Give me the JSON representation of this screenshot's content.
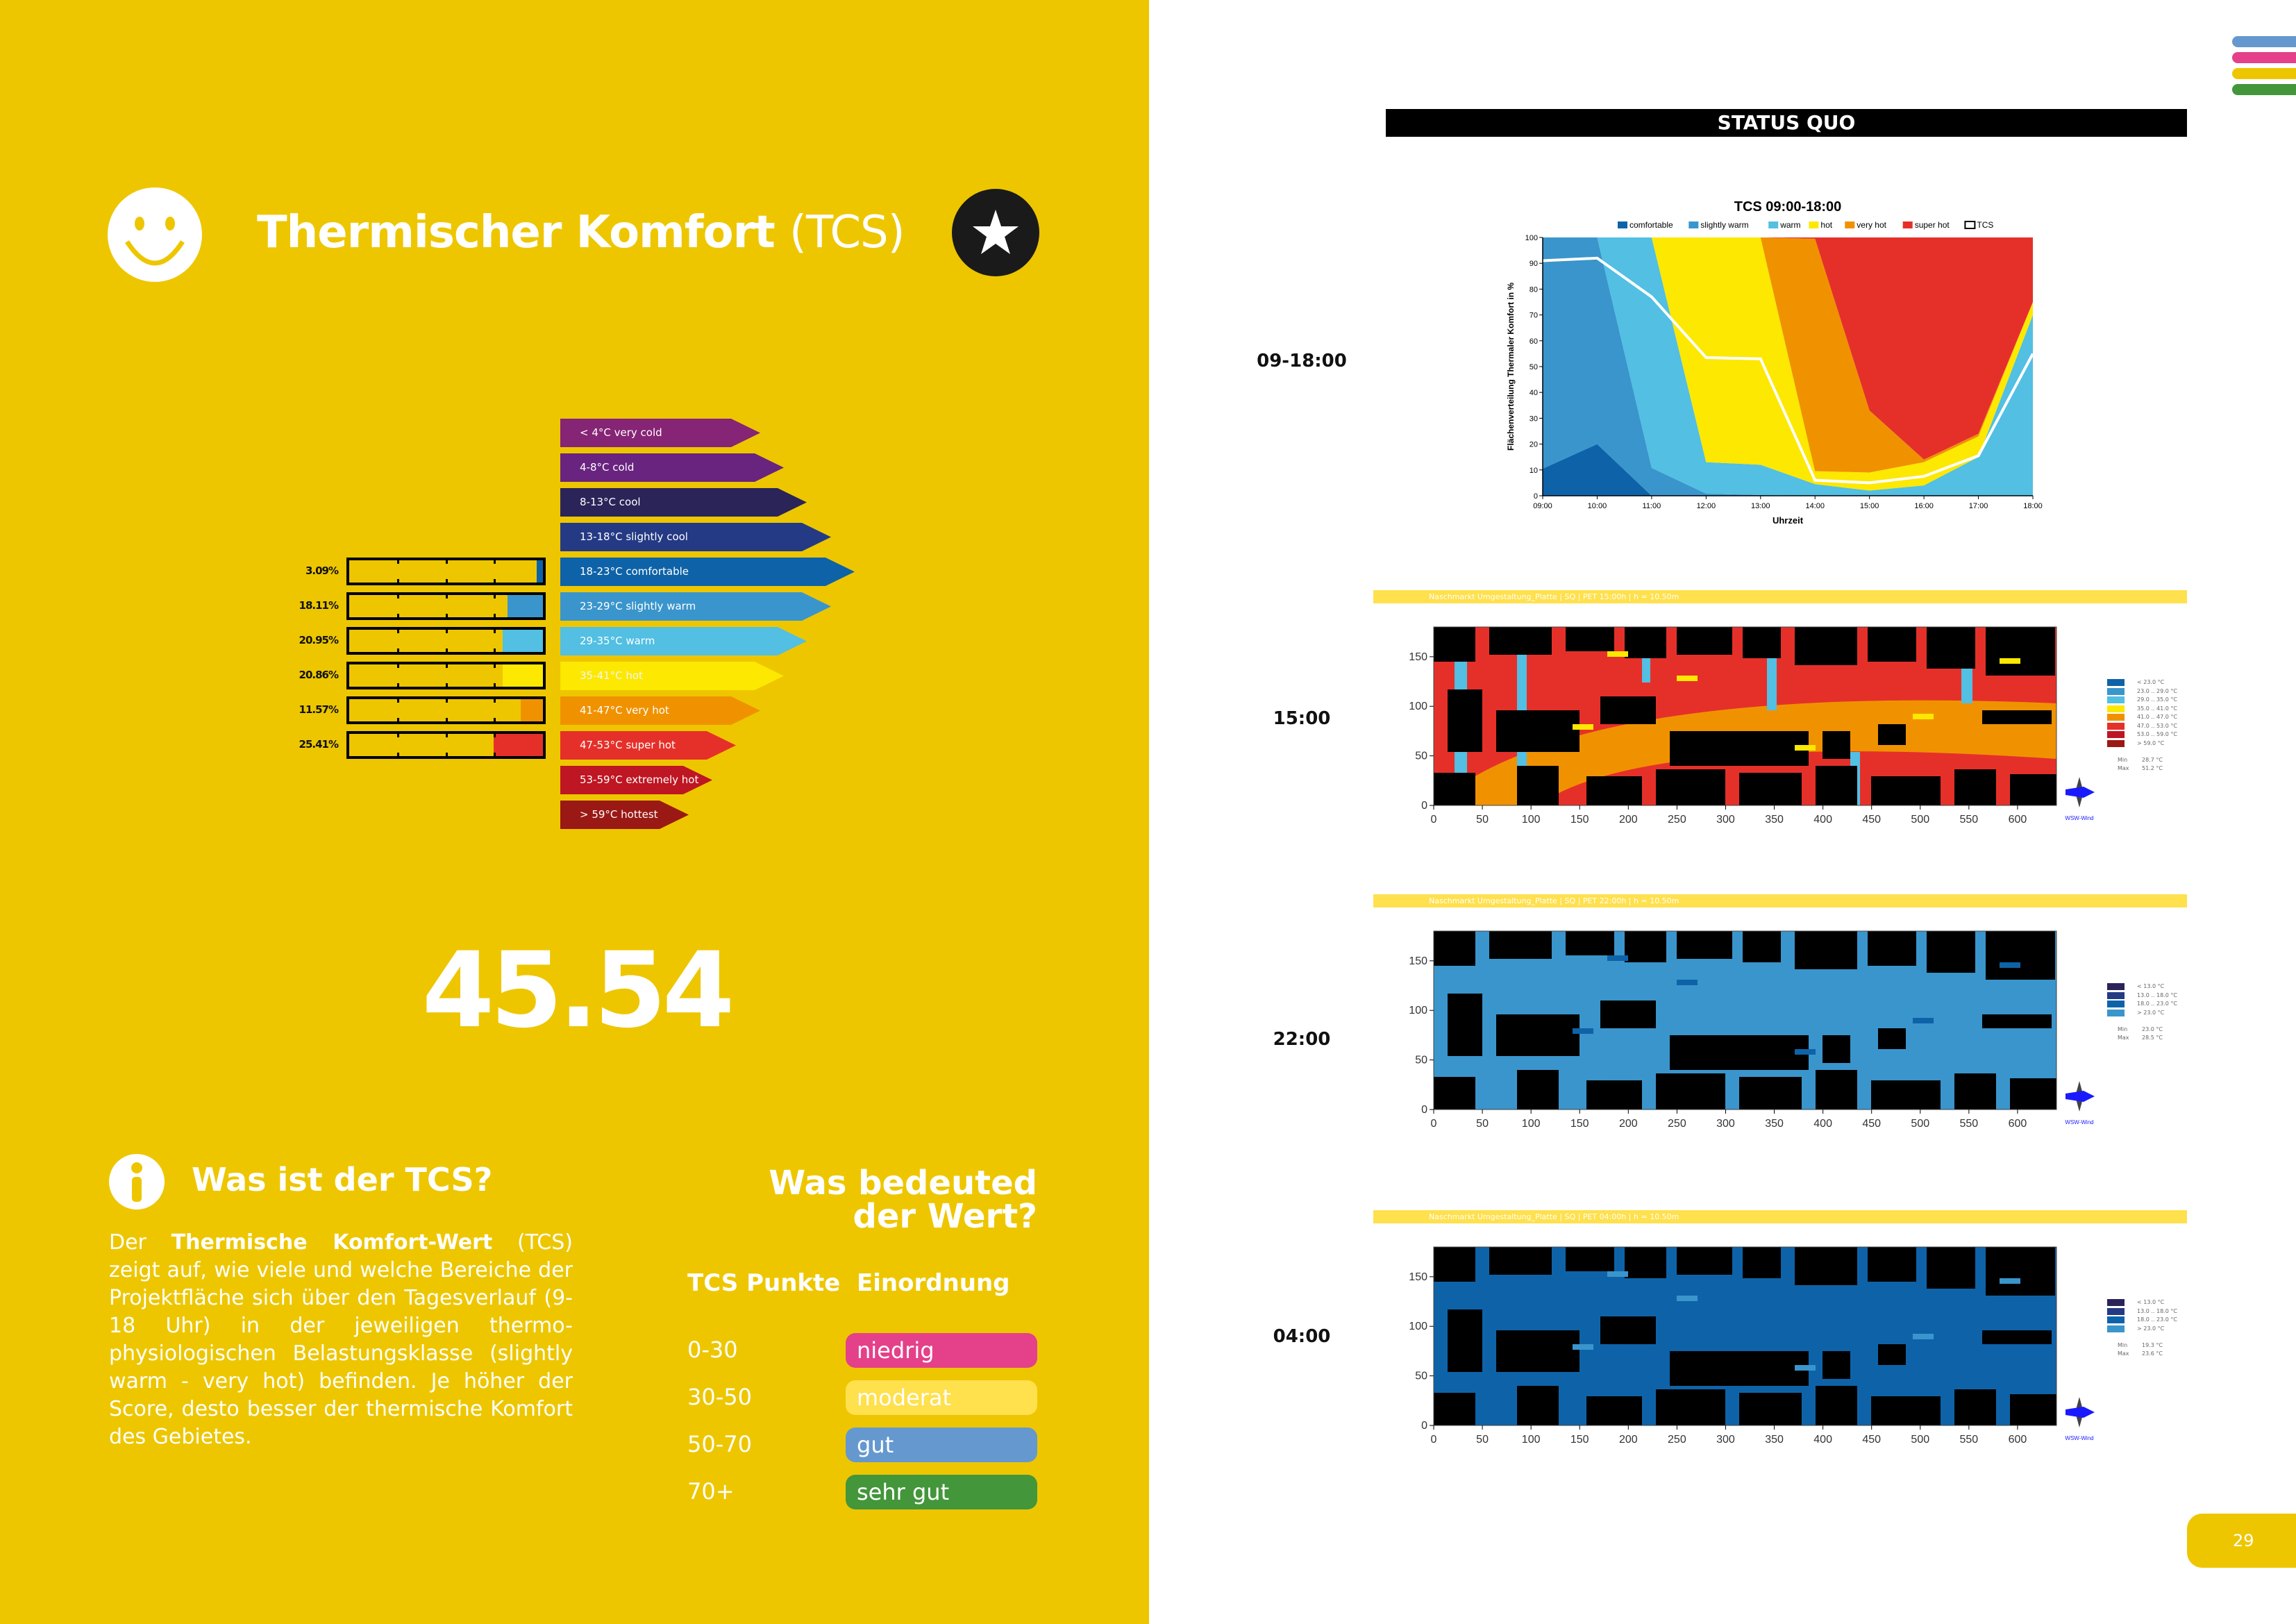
{
  "header": {
    "title_bold": "Thermischer Komfort",
    "title_light": "(TCS)"
  },
  "icons": {
    "smiley": "smiley-icon",
    "star": "star-icon",
    "info": "info-icon",
    "compass": "wind-compass-icon"
  },
  "classes": [
    {
      "label": "< 4°C very cold",
      "color": "#862475"
    },
    {
      "label": "4-8°C cold",
      "color": "#68247F"
    },
    {
      "label": "8-13°C cool",
      "color": "#2A2459"
    },
    {
      "label": "13-18°C slightly cool",
      "color": "#243A84"
    },
    {
      "label": "18-23°C comfortable",
      "color": "#0E63A8"
    },
    {
      "label": "23-29°C slightly warm",
      "color": "#3A95CC"
    },
    {
      "label": "29-35°C warm",
      "color": "#52BFE3"
    },
    {
      "label": "35-41°C hot",
      "color": "#FCE800"
    },
    {
      "label": "41-47°C very hot",
      "color": "#F09200"
    },
    {
      "label": "47-53°C super hot",
      "color": "#E5302A"
    },
    {
      "label": "53-59°C extremely hot",
      "color": "#BE1622"
    },
    {
      "label": "> 59°C hottest",
      "color": "#9A1915"
    }
  ],
  "shares": [
    {
      "label": "3.09%",
      "value": 3.09,
      "color": "#0E63A8"
    },
    {
      "label": "18.11%",
      "value": 18.11,
      "color": "#3A95CC"
    },
    {
      "label": "20.95%",
      "value": 20.95,
      "color": "#52BFE3"
    },
    {
      "label": "20.86%",
      "value": 20.86,
      "color": "#FCE800"
    },
    {
      "label": "11.57%",
      "value": 11.57,
      "color": "#F09200"
    },
    {
      "label": "25.41%",
      "value": 25.41,
      "color": "#E5302A"
    }
  ],
  "score": "45.54",
  "info": {
    "title": "Was ist der TCS?",
    "text_pre": "Der ",
    "text_bold": "Thermische Komfort-Wert",
    "text_post": " (TCS) zeigt auf, wie viele und welche Bereiche der Projektfläche sich über den Tagesverlauf (9-18 Uhr) in der jeweiligen thermo-physiologischen Belastungsklasse (slightly warm - very hot) befinden. Je höher der Score, desto besser der thermische Komfort des Gebietes."
  },
  "meaning": {
    "title_line1": "Was bedeuted",
    "title_line2": "der Wert?",
    "col1": "TCS Punkte",
    "col2": "Einordnung",
    "rows": [
      {
        "range": "0-30",
        "label": "niedrig",
        "color": "#E5408A"
      },
      {
        "range": "30-50",
        "label": "moderat",
        "color": "#FFE04D"
      },
      {
        "range": "50-70",
        "label": "gut",
        "color": "#6598CF"
      },
      {
        "range": "70+",
        "label": "sehr gut",
        "color": "#43963A"
      }
    ]
  },
  "right": {
    "status": "STATUS QUO",
    "times": [
      "09-18:00",
      "15:00",
      "22:00",
      "04:00"
    ],
    "page_number": "29",
    "side_colors": [
      "#6598CF",
      "#E5408A",
      "#EDC600",
      "#43963A"
    ]
  },
  "chart_data": {
    "type": "area",
    "title": "TCS 09:00-18:00",
    "xlabel": "Uhrzeit",
    "ylabel": "Flächenverteilung Thermaler Komfort in %",
    "ylim": [
      0,
      100
    ],
    "yticks": [
      "0",
      "10",
      "20",
      "30",
      "40",
      "50",
      "60",
      "70",
      "80",
      "90",
      "100"
    ],
    "categories": [
      "09:00",
      "10:00",
      "11:00",
      "12:00",
      "13:00",
      "14:00",
      "15:00",
      "16:00",
      "17:00",
      "18:00"
    ],
    "series": [
      {
        "name": "comfortable",
        "color": "#0E63A8",
        "values": [
          10.5,
          20,
          0,
          0,
          0,
          0,
          0,
          0,
          0,
          0
        ]
      },
      {
        "name": "slightly warm",
        "color": "#3A95CC",
        "values": [
          89.5,
          80,
          10.8,
          0.8,
          0.3,
          0,
          0,
          0,
          0,
          0
        ]
      },
      {
        "name": "warm",
        "color": "#52BFE3",
        "values": [
          0,
          0,
          89.2,
          12.2,
          11.7,
          4.5,
          2,
          4,
          15,
          70
        ]
      },
      {
        "name": "hot",
        "color": "#FCE800",
        "values": [
          0,
          0,
          0,
          87,
          88,
          5,
          7,
          9,
          8,
          5
        ]
      },
      {
        "name": "very hot",
        "color": "#F09200",
        "values": [
          0,
          0,
          0,
          0,
          0,
          90,
          24,
          1,
          1,
          0
        ]
      },
      {
        "name": "super hot",
        "color": "#E5302A",
        "values": [
          0,
          0,
          0,
          0,
          0,
          0.5,
          67,
          86,
          76,
          25
        ]
      }
    ],
    "line": {
      "name": "TCS",
      "values": [
        91,
        92,
        77,
        53.5,
        53,
        6,
        5,
        7.5,
        15.5,
        55
      ]
    }
  },
  "maps": [
    {
      "banner": "Naschmarkt Umgestaltung_Platte | SQ | PET 15:00h | h = 10.50m",
      "base": "#E5302A",
      "band": "#F09200",
      "strip": "#52BFE3",
      "spot": "#FCE800",
      "legend": [
        {
          "label": "< 23.0 °C",
          "color": "#0E63A8"
        },
        {
          "label": "23.0 .. 29.0 °C",
          "color": "#3A95CC"
        },
        {
          "label": "29.0 .. 35.0 °C",
          "color": "#52BFE3"
        },
        {
          "label": "35.0 .. 41.0 °C",
          "color": "#FCE800"
        },
        {
          "label": "41.0 .. 47.0 °C",
          "color": "#F09200"
        },
        {
          "label": "47.0 .. 53.0 °C",
          "color": "#E5302A"
        },
        {
          "label": "53.0 .. 59.0 °C",
          "color": "#BE1622"
        },
        {
          "label": "> 59.0 °C",
          "color": "#9A1915"
        }
      ],
      "min_label": "Min",
      "min": "28.7 °C",
      "max_label": "Max",
      "max": "51.2 °C",
      "wind": "WSW-Wind"
    },
    {
      "banner": "Naschmarkt Umgestaltung_Platte | SQ | PET 22:00h | h = 10.50m",
      "base": "#3A95CC",
      "band": "#3A95CC",
      "strip": "#3A95CC",
      "spot": "#0E63A8",
      "legend": [
        {
          "label": "< 13.0 °C",
          "color": "#2A2459"
        },
        {
          "label": "13.0 .. 18.0 °C",
          "color": "#243A84"
        },
        {
          "label": "18.0 .. 23.0 °C",
          "color": "#0E63A8"
        },
        {
          "label": "> 23.0 °C",
          "color": "#3A95CC"
        }
      ],
      "min_label": "Min",
      "min": "23.0 °C",
      "max_label": "Max",
      "max": "28.5 °C",
      "wind": "WSW-Wind"
    },
    {
      "banner": "Naschmarkt Umgestaltung_Platte | SQ | PET 04:00h | h = 10.50m",
      "base": "#0E63A8",
      "band": "#0E63A8",
      "strip": "#0E63A8",
      "spot": "#3A95CC",
      "legend": [
        {
          "label": "< 13.0 °C",
          "color": "#2A2459"
        },
        {
          "label": "13.0 .. 18.0 °C",
          "color": "#243A84"
        },
        {
          "label": "18.0 .. 23.0 °C",
          "color": "#0E63A8"
        },
        {
          "label": "> 23.0 °C",
          "color": "#3A95CC"
        }
      ],
      "min_label": "Min",
      "min": "19.3 °C",
      "max_label": "Max",
      "max": "23.6 °C",
      "wind": "WSW-Wind"
    }
  ],
  "map_axes": {
    "xticks": [
      "0",
      "50",
      "100",
      "150",
      "200",
      "250",
      "300",
      "350",
      "400",
      "450",
      "500",
      "550",
      "600"
    ],
    "yticks": [
      "0",
      "50",
      "100",
      "150"
    ],
    "xmax": 640,
    "ymax": 180
  }
}
